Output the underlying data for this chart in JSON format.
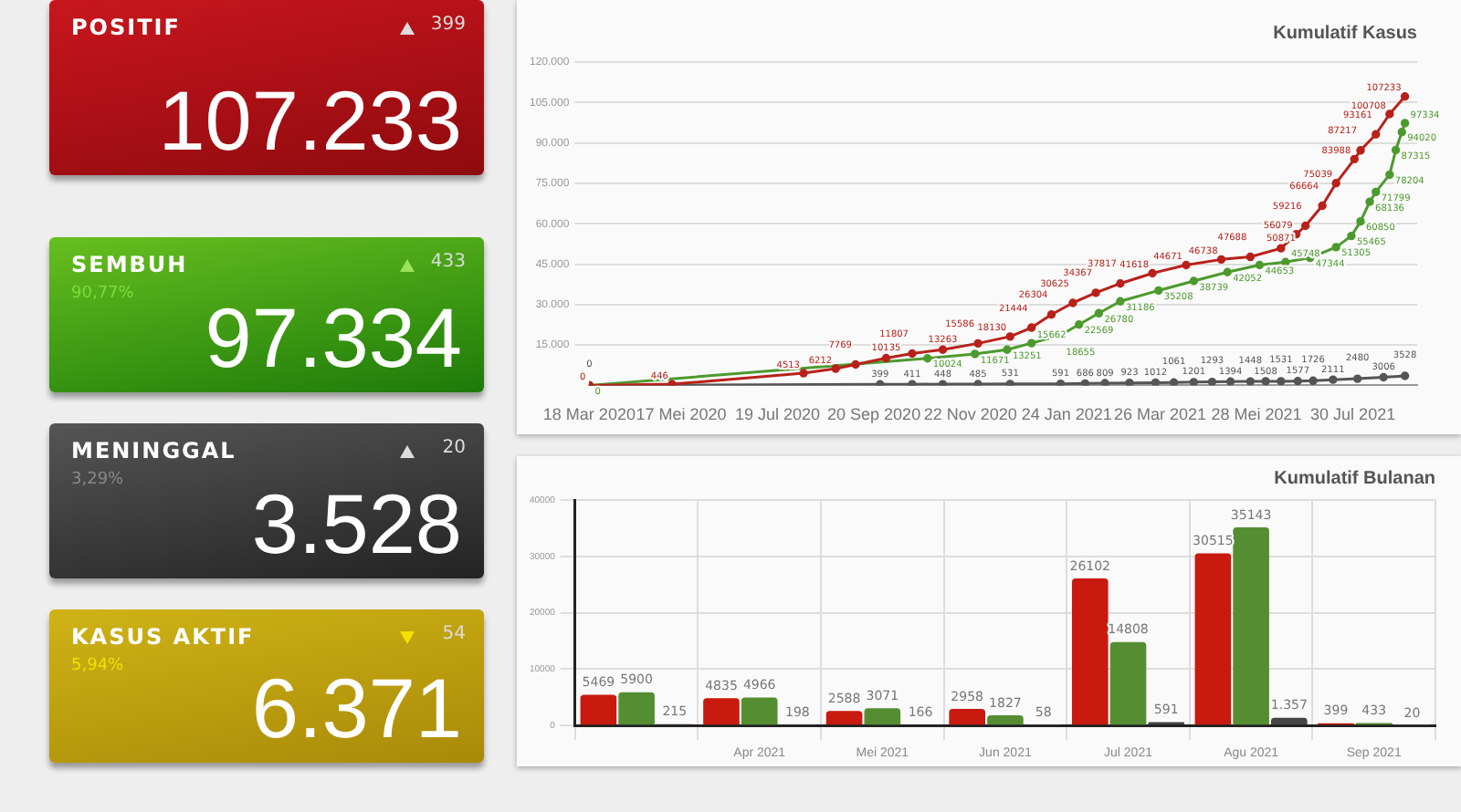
{
  "chart_data": [
    {
      "type": "other",
      "annotations": [
        "POSITIF",
        "399",
        "107.233",
        "SEMBUH",
        "90,77%",
        "433",
        "97.334",
        "MENINGGAL",
        "3,29%",
        "20",
        "3.528",
        "KASUS AKTIF",
        "5,94%",
        "54",
        "6.371"
      ]
    },
    {
      "type": "line",
      "title": "Kumulatif Kasus",
      "xlim": [
        "2020-03-18",
        "2021-09-10"
      ],
      "xticks": [
        {
          "value": "2020-03-18",
          "label": "18 Mar 2020"
        },
        {
          "value": "2020-05-17",
          "label": "17 Mei 2020"
        },
        {
          "value": "2020-07-19",
          "label": "19 Jul 2020"
        },
        {
          "value": "2020-09-20",
          "label": "20 Sep 2020"
        },
        {
          "value": "2020-11-22",
          "label": "22 Nov 2020"
        },
        {
          "value": "2021-01-24",
          "label": "24 Jan 2021"
        },
        {
          "value": "2021-03-26",
          "label": "26 Mar 2021"
        },
        {
          "value": "2021-05-28",
          "label": "28 Mei 2021"
        },
        {
          "value": "2021-07-30",
          "label": "30 Jul 2021"
        }
      ],
      "ylim": [
        0,
        120000
      ],
      "yticks": [
        {
          "value": 15000,
          "label": "15.000"
        },
        {
          "value": 30000,
          "label": "30.000"
        },
        {
          "value": 45000,
          "label": "45.000"
        },
        {
          "value": 60000,
          "label": "60.000"
        },
        {
          "value": 75000,
          "label": "75.000"
        },
        {
          "value": 90000,
          "label": "90.000"
        },
        {
          "value": 105000,
          "label": "105.000"
        },
        {
          "value": 120000,
          "label": "120.000"
        }
      ],
      "grid": "y",
      "marker": "circle",
      "data_labels": true,
      "series": [
        {
          "color": "#b8211a",
          "x": [
            "2020-03-18",
            "2020-05-11",
            "2020-08-05",
            "2020-08-26",
            "2020-09-08",
            "2020-09-28",
            "2020-10-15",
            "2020-11-04",
            "2020-11-27",
            "2020-12-18",
            "2021-01-01",
            "2021-01-14",
            "2021-01-28",
            "2021-02-12",
            "2021-02-28",
            "2021-03-21",
            "2021-04-12",
            "2021-05-05",
            "2021-05-24",
            "2021-06-13",
            "2021-06-23",
            "2021-06-29",
            "2021-07-10",
            "2021-07-19",
            "2021-07-31",
            "2021-08-04",
            "2021-08-14",
            "2021-08-23",
            "2021-09-02"
          ],
          "values": [
            0,
            446,
            4513,
            6212,
            7769,
            10135,
            11807,
            13263,
            15586,
            18130,
            21444,
            26304,
            30625,
            34367,
            37817,
            41618,
            44671,
            46738,
            47688,
            50871,
            56079,
            59216,
            66664,
            75039,
            83988,
            87217,
            93161,
            100708,
            107233
          ]
        },
        {
          "color": "#4c9a2e",
          "x": [
            "2020-03-18",
            "2020-10-25",
            "2020-11-25",
            "2020-12-16",
            "2021-01-01",
            "2021-01-20",
            "2021-02-01",
            "2021-02-14",
            "2021-02-28",
            "2021-03-25",
            "2021-04-17",
            "2021-05-09",
            "2021-05-30",
            "2021-06-16",
            "2021-07-02",
            "2021-07-19",
            "2021-07-29",
            "2021-08-04",
            "2021-08-10",
            "2021-08-14",
            "2021-08-23",
            "2021-08-27",
            "2021-08-31",
            "2021-09-02"
          ],
          "values": [
            0,
            10024,
            11671,
            13251,
            15662,
            18655,
            22569,
            26780,
            31186,
            35208,
            38739,
            42052,
            44653,
            45748,
            47344,
            51305,
            55465,
            60850,
            68136,
            71799,
            78204,
            87315,
            94020,
            97334
          ]
        },
        {
          "color": "#555555",
          "x": [
            "2020-03-18",
            "2020-09-24",
            "2020-10-15",
            "2020-11-04",
            "2020-11-27",
            "2020-12-18",
            "2021-01-20",
            "2021-02-05",
            "2021-02-18",
            "2021-03-06",
            "2021-03-23",
            "2021-04-04",
            "2021-04-17",
            "2021-04-29",
            "2021-05-11",
            "2021-05-24",
            "2021-06-03",
            "2021-06-13",
            "2021-06-24",
            "2021-07-04",
            "2021-07-17",
            "2021-08-02",
            "2021-08-19",
            "2021-09-02"
          ],
          "values": [
            0,
            399,
            411,
            448,
            485,
            531,
            591,
            686,
            809,
            923,
            1012,
            1061,
            1201,
            1293,
            1394,
            1448,
            1508,
            1531,
            1577,
            1726,
            2111,
            2480,
            3006,
            3528
          ]
        }
      ]
    },
    {
      "type": "bar",
      "title": "Kumulatif Bulanan",
      "categories": [
        null,
        "Apr 2021",
        "Mei 2021",
        "Jun 2021",
        "Jul 2021",
        "Agu 2021",
        "Sep 2021"
      ],
      "ylim": [
        0,
        40000
      ],
      "yticks": [
        0,
        10000,
        20000,
        30000,
        40000
      ],
      "grid": true,
      "series": [
        {
          "color": "#c81a0e",
          "values": [
            5469,
            4835,
            2588,
            2958,
            26102,
            30515,
            399
          ],
          "value_labels": [
            "5469",
            "4835",
            "2588",
            "2958",
            "26102",
            "30515",
            "399"
          ]
        },
        {
          "color": "#558e32",
          "values": [
            5900,
            4966,
            3071,
            1827,
            14808,
            35143,
            433
          ],
          "value_labels": [
            "5900",
            "4966",
            "3071",
            "1827",
            "14808",
            "35143",
            "433"
          ]
        },
        {
          "color": "#444444",
          "values": [
            215,
            198,
            166,
            58,
            591,
            1357,
            20
          ],
          "value_labels": [
            "215",
            "198",
            "166",
            "58",
            "591",
            "1.357",
            "20"
          ]
        }
      ]
    }
  ]
}
